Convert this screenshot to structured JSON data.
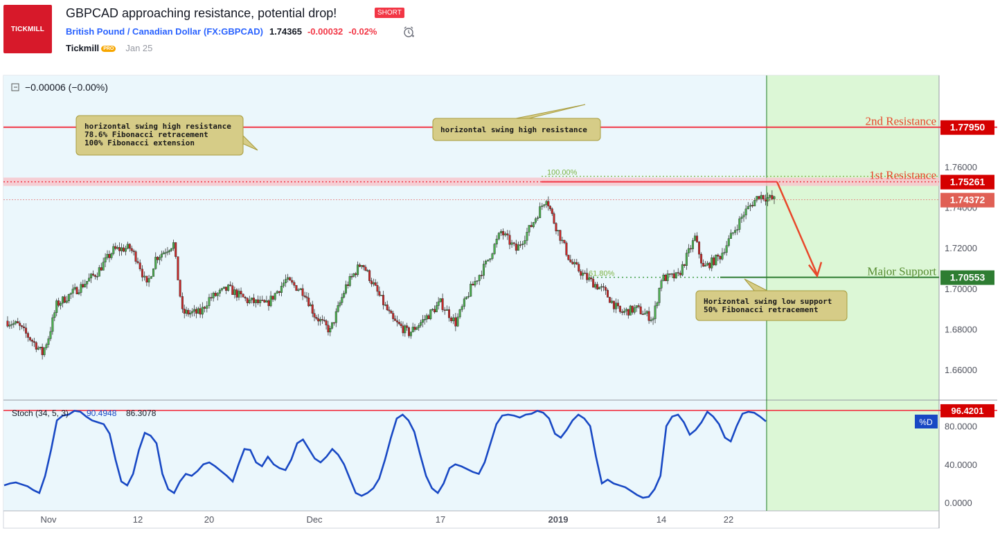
{
  "header": {
    "logo_text": "TICKMILL",
    "title": "GBPCAD approaching resistance, potential drop!",
    "badge": "SHORT",
    "symbol_name": "British Pound / Canadian Dollar",
    "symbol_code": "(FX:GBPCAD)",
    "price": "1.74365",
    "change": "-0.00032",
    "change_pct": "-0.02%",
    "author": "Tickmill",
    "author_badge": "PRO",
    "date": "Jan 25"
  },
  "colors": {
    "bullish": "#4caf50",
    "bearish": "#c62828",
    "resistance": "#f23645",
    "support": "#2e7d32",
    "forecast_zone": "#dcf7d6",
    "chart_background": "#ebf7fc",
    "stoch_line": "#1848c4",
    "annotation_fill": "#d6cc87"
  },
  "chart_data": [
    {
      "type": "candlestick",
      "symbol": "GBPCAD",
      "interval": "4H",
      "legend_value": "−0.00006 (−0.00%)",
      "ylim": [
        1.645,
        1.805
      ],
      "yticks": [
        "1.76000",
        "1.74000",
        "1.72000",
        "1.70000",
        "1.68000",
        "1.66000"
      ],
      "xticks": [
        "Nov",
        "12",
        "20",
        "Dec",
        "17",
        "2019",
        "14",
        "22"
      ],
      "close_path": [
        [
          "Oct 25",
          1.684
        ],
        [
          "Oct 27",
          1.682
        ],
        [
          "Oct 30",
          1.672
        ],
        [
          "Oct 31",
          1.668
        ],
        [
          "Nov 1",
          1.676
        ],
        [
          "Nov 2",
          1.692
        ],
        [
          "Nov 5",
          1.701
        ],
        [
          "Nov 7",
          1.708
        ],
        [
          "Nov 9",
          1.719
        ],
        [
          "Nov 11",
          1.72
        ],
        [
          "Nov 12",
          1.714
        ],
        [
          "Nov 13",
          1.701
        ],
        [
          "Nov 14",
          1.715
        ],
        [
          "Nov 16",
          1.722
        ],
        [
          "Nov 17",
          1.688
        ],
        [
          "Nov 19",
          1.688
        ],
        [
          "Nov 20",
          1.695
        ],
        [
          "Nov 22",
          1.7
        ],
        [
          "Nov 24",
          1.694
        ],
        [
          "Nov 26",
          1.692
        ],
        [
          "Nov 28",
          1.704
        ],
        [
          "Nov 30",
          1.698
        ],
        [
          "Dec 1",
          1.687
        ],
        [
          "Dec 3",
          1.679
        ],
        [
          "Dec 5",
          1.701
        ],
        [
          "Dec 7",
          1.713
        ],
        [
          "Dec 9",
          1.698
        ],
        [
          "Dec 11",
          1.684
        ],
        [
          "Dec 13",
          1.678
        ],
        [
          "Dec 15",
          1.685
        ],
        [
          "Dec 17",
          1.693
        ],
        [
          "Dec 19",
          1.683
        ],
        [
          "Dec 21",
          1.7
        ],
        [
          "Dec 23",
          1.712
        ],
        [
          "Dec 25",
          1.728
        ],
        [
          "Dec 27",
          1.719
        ],
        [
          "Dec 29",
          1.731
        ],
        [
          "Dec 31",
          1.745
        ],
        [
          "Jan 1",
          1.733
        ],
        [
          "Jan 3",
          1.713
        ],
        [
          "Jan 5",
          1.705
        ],
        [
          "Jan 7",
          1.699
        ],
        [
          "Jan 9",
          1.688
        ],
        [
          "Jan 11",
          1.69
        ],
        [
          "Jan 13",
          1.685
        ],
        [
          "Jan 14",
          1.705
        ],
        [
          "Jan 16",
          1.706
        ],
        [
          "Jan 18",
          1.725
        ],
        [
          "Jan 19",
          1.71
        ],
        [
          "Jan 21",
          1.716
        ],
        [
          "Jan 23",
          1.737
        ],
        [
          "Jan 24",
          1.746
        ],
        [
          "Jan 25",
          1.7437
        ]
      ],
      "levels": [
        {
          "name": "2nd Resistance",
          "value": "1.77950"
        },
        {
          "name": "1st Resistance",
          "value": "1.75261"
        },
        {
          "name": "Major Support",
          "value": "1.70553"
        },
        {
          "name": "last",
          "value": "1.74372"
        }
      ],
      "fibonacci": [
        {
          "label": "100.00%",
          "value": 1.7526
        },
        {
          "label": "61.80%",
          "value": 1.7055
        }
      ],
      "annotations": [
        {
          "lines": [
            "horizontal swing high resistance",
            "78.6% Fibonacci retracement",
            "100% Fibonacci extension"
          ]
        },
        {
          "lines": [
            "horizontal swing high resistance"
          ]
        },
        {
          "lines": [
            "Horizontal swing low support",
            "50% Fibonacci retracement"
          ]
        }
      ],
      "projection": {
        "from": 1.7526,
        "to": 1.7055
      }
    },
    {
      "type": "line",
      "indicator": "Stoch",
      "params": "(34, 5, 3)",
      "values_text": [
        "90.4948",
        "86.3078"
      ],
      "ylim": [
        0,
        100
      ],
      "yticks": [
        "80.0000",
        "40.0000",
        "0.0000"
      ],
      "level_label": "96.4201",
      "level_value": 96.4201,
      "series_tag": "%D",
      "series": [
        {
          "name": "%D",
          "values": [
            18,
            20,
            21,
            19,
            17,
            13,
            10,
            28,
            55,
            86,
            91,
            92,
            96,
            95,
            90,
            86,
            84,
            82,
            72,
            45,
            22,
            18,
            30,
            55,
            73,
            70,
            62,
            30,
            14,
            10,
            22,
            30,
            28,
            33,
            40,
            42,
            38,
            33,
            28,
            22,
            40,
            56,
            55,
            42,
            38,
            48,
            40,
            36,
            34,
            45,
            62,
            66,
            56,
            46,
            42,
            48,
            56,
            50,
            40,
            25,
            10,
            7,
            10,
            15,
            25,
            45,
            68,
            88,
            92,
            86,
            74,
            50,
            28,
            15,
            10,
            20,
            36,
            40,
            38,
            35,
            32,
            30,
            42,
            62,
            82,
            91,
            92,
            91,
            89,
            92,
            93,
            96,
            94,
            88,
            72,
            68,
            76,
            86,
            92,
            88,
            80,
            48,
            20,
            24,
            20,
            18,
            16,
            12,
            8,
            5,
            6,
            14,
            28,
            80,
            90,
            92,
            84,
            71,
            76,
            84,
            95,
            90,
            82,
            68,
            64,
            80,
            93,
            95,
            94,
            90,
            85
          ]
        }
      ]
    }
  ]
}
